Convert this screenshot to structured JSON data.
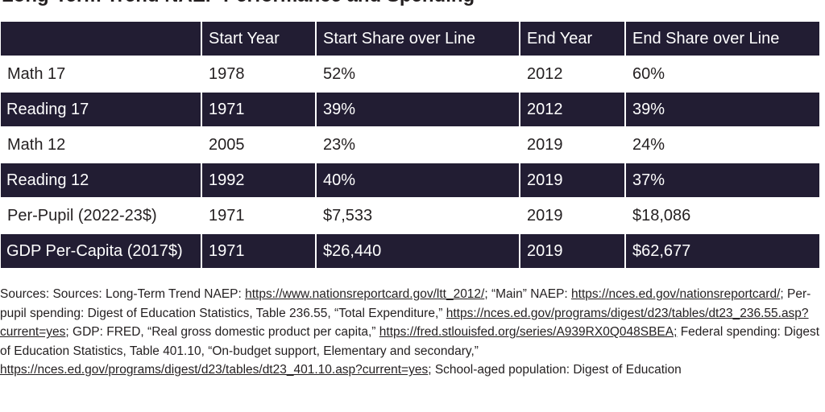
{
  "title": "Long-Term Trend NAEP Performance and Spending",
  "table": {
    "headers": [
      "",
      "Start Year",
      "Start Share over Line",
      "End Year",
      "End Share over Line"
    ],
    "rows": [
      [
        "Math 17",
        "1978",
        "52%",
        "2012",
        "60%"
      ],
      [
        "Reading 17",
        "1971",
        "39%",
        "2012",
        "39%"
      ],
      [
        "Math 12",
        "2005",
        "23%",
        "2019",
        "24%"
      ],
      [
        "Reading 12",
        "1992",
        "40%",
        "2019",
        "37%"
      ],
      [
        "Per-Pupil (2022-23$)",
        "1971",
        "$7,533",
        "2019",
        "$18,086"
      ],
      [
        "GDP Per-Capita (2017$)",
        "1971",
        "$26,440",
        "2019",
        "$62,677"
      ]
    ]
  },
  "sources": {
    "t1": "Sources: Sources: Long-Term Trend NAEP: ",
    "l1": "https://www.nationsreportcard.gov/ltt_2012/",
    "t2": "; “Main” NAEP: ",
    "l2": "https://nces.ed.gov/nationsreportcard/",
    "t3": "; Per-pupil spending: Digest of Education Statistics, Table 236.55, “Total Expenditure,” ",
    "l3": "https://nces.ed.gov/programs/digest/d23/tables/dt23_236.55.asp?current=yes",
    "t4": "; GDP: FRED, “Real gross domestic product per capita,” ",
    "l4": "https://fred.stlouisfed.org/series/A939RX0Q048SBEA;",
    "t5": " Federal spending: Digest of Education Statistics, Table 401.10, “On-budget support, Elementary and secondary,” ",
    "l5": "https://nces.ed.gov/programs/digest/d23/tables/dt23_401.10.asp?current=yes",
    "t6": "; School-aged population: Digest of Education"
  },
  "colors": {
    "header_bg": "#221d33",
    "band_bg": "#221d33",
    "text": "#231f20"
  }
}
